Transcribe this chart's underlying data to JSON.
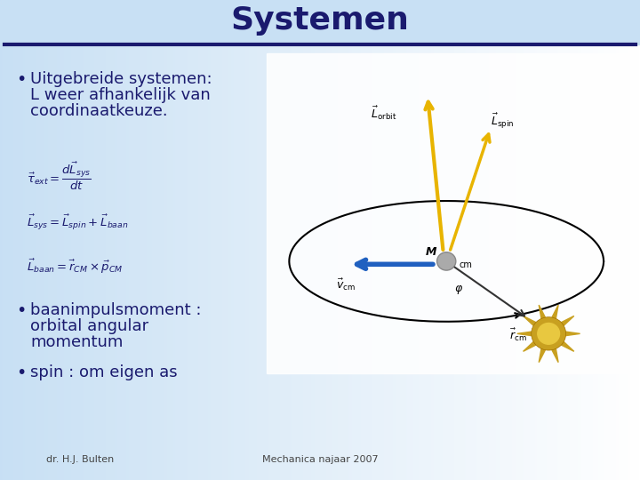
{
  "title": "Systemen",
  "title_color": "#1a1a6e",
  "title_fontsize": 26,
  "bg_color_left": "#c8e0f4",
  "bg_color_right": "#ffffff",
  "separator_color": "#1a1a6e",
  "bullet_color": "#1a1a6e",
  "bullet_fontsize": 13,
  "bullet1_lines": [
    "Uitgebreide systemen:",
    "L weer afhankelijk van",
    "coordinaatkeuze."
  ],
  "bullet2_lines": [
    "baanimpulsmoment :",
    "orbital angular",
    "momentum"
  ],
  "bullet3_lines": [
    "spin : om eigen as"
  ],
  "footer_left": "dr. H.J. Bulten",
  "footer_right": "Mechanica najaar 2007",
  "footer_color": "#444444",
  "footer_fontsize": 8
}
